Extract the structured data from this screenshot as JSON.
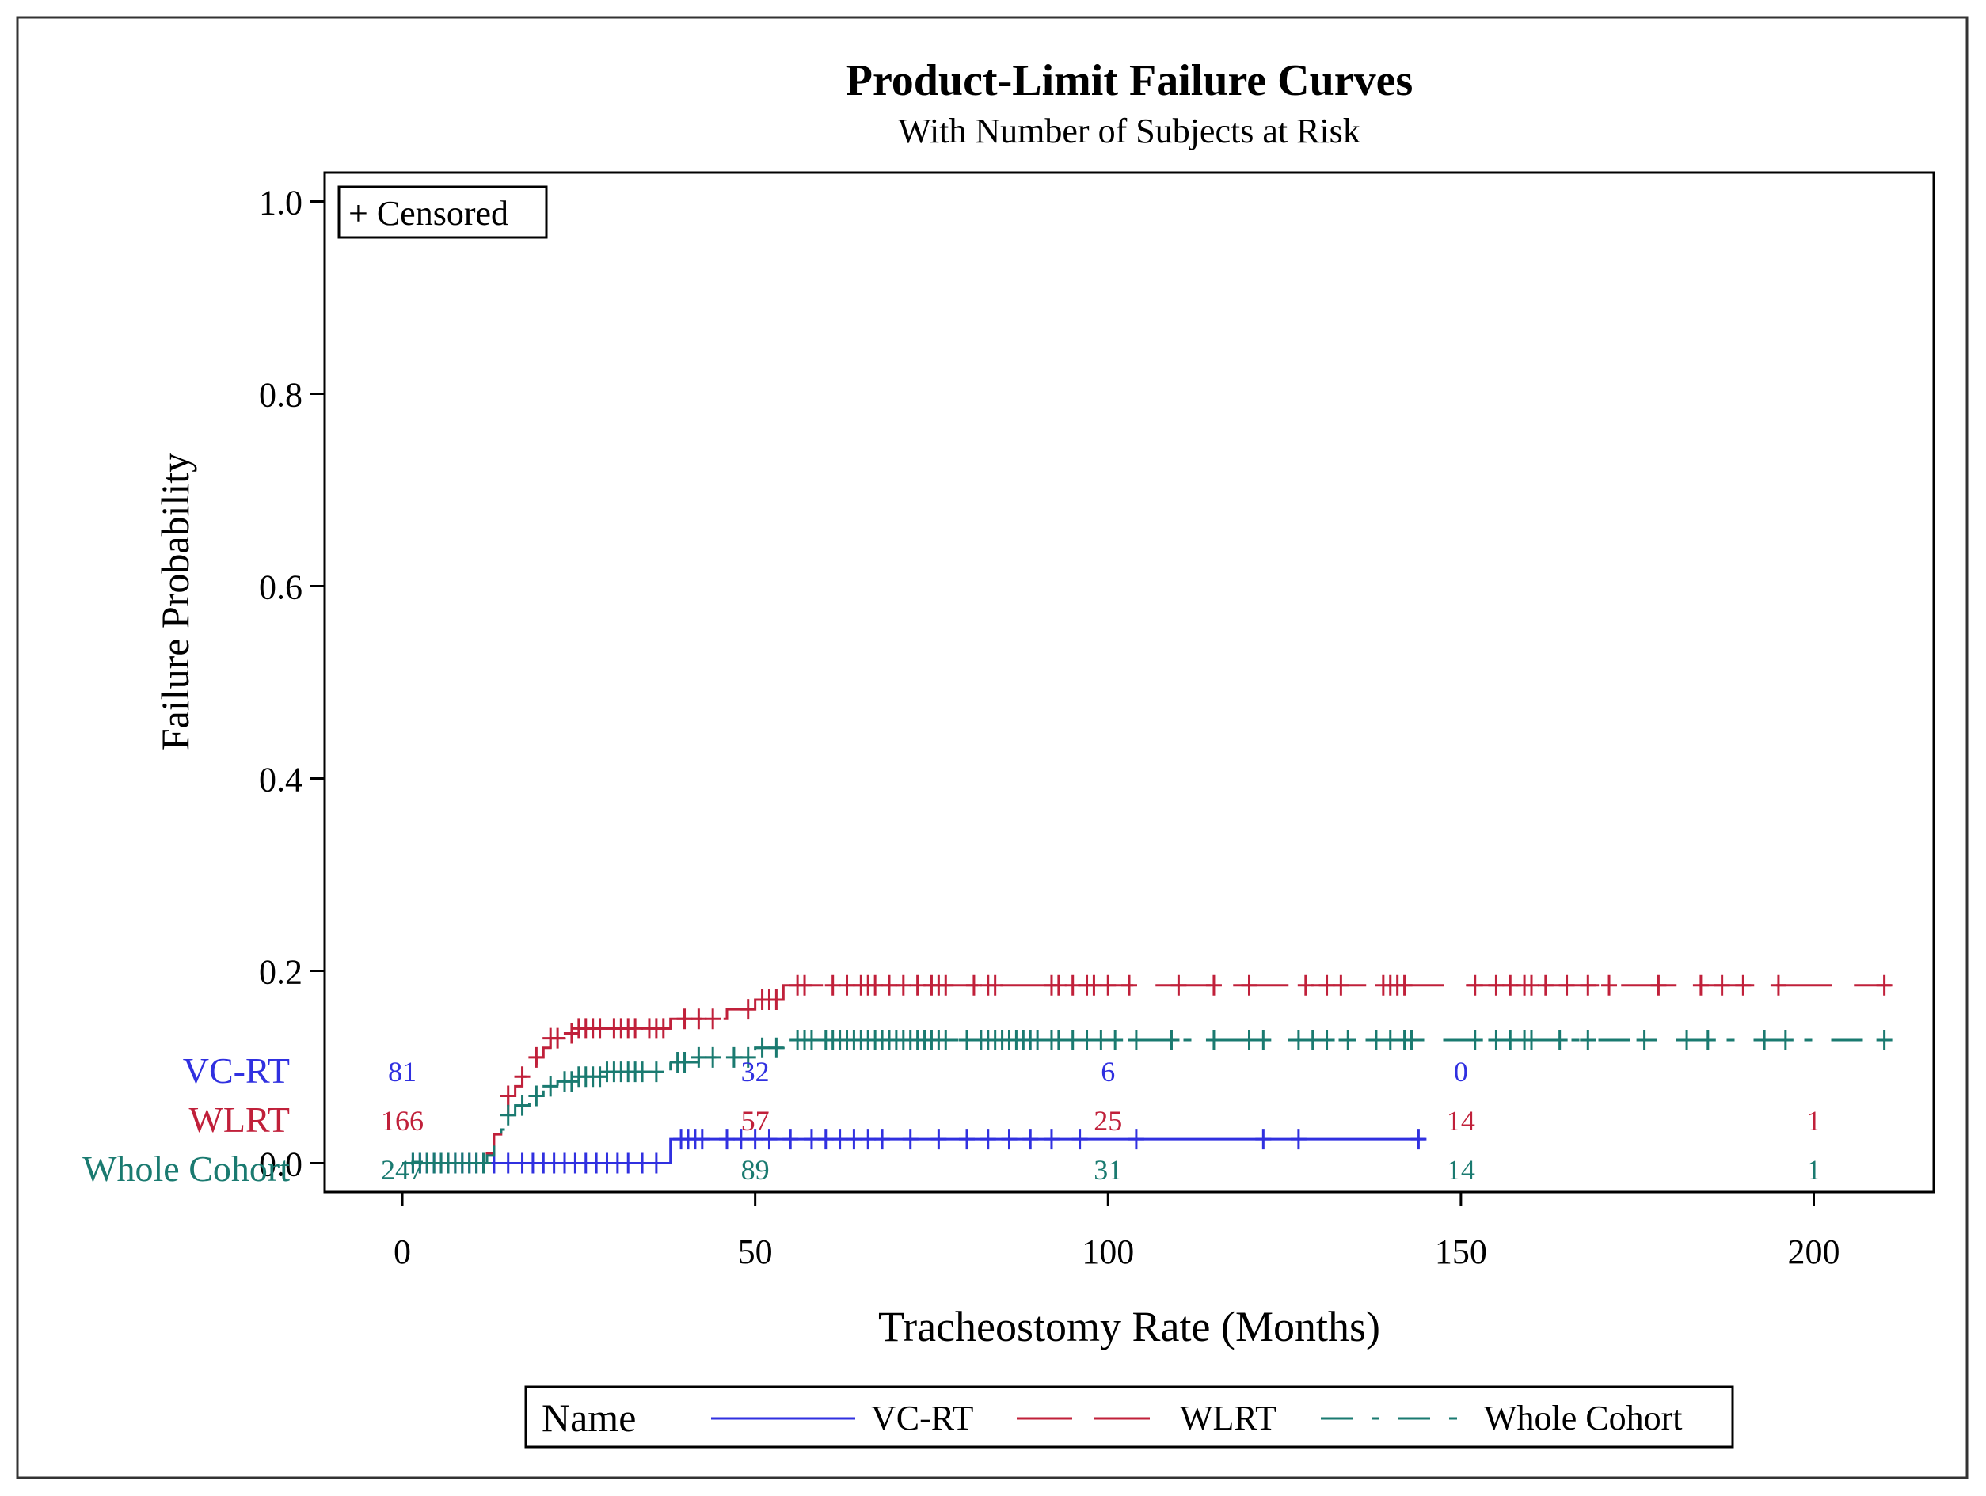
{
  "chart_data": {
    "type": "line",
    "title": "Product-Limit Failure Curves",
    "subtitle": "With Number of Subjects at Risk",
    "xlabel": "Tracheostomy Rate (Months)",
    "ylabel": "Failure Probability",
    "xlim": [
      -11,
      217
    ],
    "ylim": [
      -0.03,
      1.03
    ],
    "x_ticks": [
      0,
      50,
      100,
      150,
      200
    ],
    "y_ticks": [
      0.0,
      0.2,
      0.4,
      0.6,
      0.8,
      1.0
    ],
    "censored_label": "+ Censored",
    "legend": {
      "title": "Name",
      "entries": [
        "VC-RT",
        "WLRT",
        "Whole Cohort"
      ]
    },
    "series": [
      {
        "name": "VC-RT",
        "color": "#3030e0",
        "dash": "solid",
        "steps": [
          [
            0,
            0
          ],
          [
            38,
            0.025
          ],
          [
            145,
            0.025
          ]
        ],
        "censored": [
          1.5,
          2.5,
          3.5,
          4.5,
          5.5,
          6.5,
          7.5,
          8.5,
          9.5,
          10.5,
          11.5,
          13,
          15,
          17,
          18.5,
          20,
          21.5,
          23,
          24.5,
          26,
          27.5,
          29,
          30.5,
          32,
          34,
          36,
          39.5,
          40.5,
          41.5,
          42.5,
          46,
          48,
          50,
          52,
          55,
          58,
          60,
          62,
          64,
          66,
          68,
          72,
          76,
          80,
          83,
          86,
          89,
          92,
          96,
          104,
          122,
          127,
          144
        ]
      },
      {
        "name": "WLRT",
        "color": "#c0203a",
        "dash": "long-dash",
        "steps": [
          [
            0,
            0
          ],
          [
            12,
            0.01
          ],
          [
            13,
            0.03
          ],
          [
            14,
            0.05
          ],
          [
            15,
            0.07
          ],
          [
            16,
            0.08
          ],
          [
            17,
            0.09
          ],
          [
            18,
            0.1
          ],
          [
            19,
            0.11
          ],
          [
            20,
            0.12
          ],
          [
            21,
            0.13
          ],
          [
            23,
            0.135
          ],
          [
            25,
            0.14
          ],
          [
            38,
            0.15
          ],
          [
            46,
            0.16
          ],
          [
            50,
            0.17
          ],
          [
            54,
            0.185
          ],
          [
            211,
            0.185
          ]
        ],
        "censored": [
          15,
          17,
          19,
          21,
          22,
          24,
          25,
          26,
          27,
          28,
          30,
          31,
          32,
          33,
          35,
          36,
          37,
          40,
          42,
          44,
          49,
          51,
          52,
          53,
          56,
          57,
          61,
          63,
          65,
          66,
          67,
          69,
          71,
          73,
          75,
          76,
          77,
          81,
          83,
          84,
          92,
          93,
          95,
          97,
          98,
          100,
          103,
          110,
          115,
          120,
          128,
          131,
          133,
          139,
          140,
          141,
          142,
          152,
          155,
          157,
          159,
          160,
          162,
          165,
          168,
          171,
          178,
          184,
          187,
          190,
          195,
          210
        ]
      },
      {
        "name": "Whole Cohort",
        "color": "#1a7a70",
        "dash": "dash-dot",
        "steps": [
          [
            0,
            0
          ],
          [
            12,
            0.008
          ],
          [
            13,
            0.02
          ],
          [
            14,
            0.035
          ],
          [
            15,
            0.05
          ],
          [
            16,
            0.06
          ],
          [
            18,
            0.07
          ],
          [
            20,
            0.08
          ],
          [
            22,
            0.085
          ],
          [
            25,
            0.09
          ],
          [
            29,
            0.095
          ],
          [
            38,
            0.105
          ],
          [
            42,
            0.11
          ],
          [
            50,
            0.12
          ],
          [
            54,
            0.128
          ],
          [
            211,
            0.128
          ]
        ],
        "censored": [
          1.5,
          2.5,
          3.5,
          4.5,
          5.5,
          6.5,
          7.5,
          8.5,
          9.5,
          10.5,
          11.5,
          15,
          17,
          19,
          21,
          23,
          24,
          25,
          26,
          27,
          28,
          29,
          30,
          31,
          32,
          33,
          34,
          36,
          39,
          40,
          42,
          44,
          47,
          49,
          51,
          53,
          56,
          57,
          58,
          60,
          61,
          62,
          63,
          64,
          65,
          66,
          67,
          68,
          69,
          70,
          71,
          72,
          73,
          74,
          75,
          76,
          77,
          80,
          82,
          83,
          84,
          85,
          86,
          87,
          88,
          89,
          90,
          92,
          93,
          95,
          97,
          99,
          101,
          104,
          109,
          115,
          120,
          122,
          127,
          129,
          131,
          134,
          138,
          140,
          142,
          143,
          152,
          155,
          157,
          159,
          160,
          164,
          168,
          176,
          182,
          185,
          193,
          196,
          210
        ]
      }
    ],
    "at_risk": {
      "times": [
        0,
        50,
        100,
        150,
        200
      ],
      "rows": [
        {
          "name": "VC-RT",
          "counts": [
            "81",
            "32",
            "6",
            "0",
            ""
          ]
        },
        {
          "name": "WLRT",
          "counts": [
            "166",
            "57",
            "25",
            "14",
            "1"
          ]
        },
        {
          "name": "Whole Cohort",
          "counts": [
            "247",
            "89",
            "31",
            "14",
            "1"
          ]
        }
      ]
    }
  }
}
